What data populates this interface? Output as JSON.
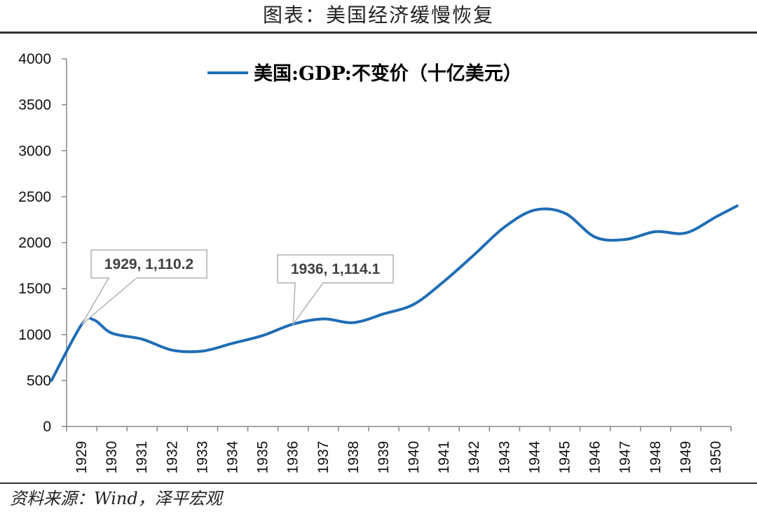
{
  "title": "图表：美国经济缓慢恢复",
  "source": "资料来源：Wind，泽平宏观",
  "chart_data": {
    "type": "line",
    "title": "",
    "xlabel": "",
    "ylabel": "",
    "ylim": [
      0,
      4000
    ],
    "yticks": [
      0,
      500,
      1000,
      1500,
      2000,
      2500,
      3000,
      3500,
      4000
    ],
    "categories": [
      "1929",
      "1930",
      "1931",
      "1932",
      "1933",
      "1934",
      "1935",
      "1936",
      "1937",
      "1938",
      "1939",
      "1940",
      "1941",
      "1942",
      "1943",
      "1944",
      "1945",
      "1946",
      "1947",
      "1948",
      "1949",
      "1950"
    ],
    "legend_position": "top",
    "grid": false,
    "series": [
      {
        "name": "美国:GDP:不变价（十亿美元）",
        "color": "#1f6db5",
        "points": [
          {
            "x": 1928,
            "y": 500
          },
          {
            "x": 1929,
            "y": 1110.2
          },
          {
            "x": 1929.4,
            "y": 1160
          },
          {
            "x": 1930,
            "y": 1015
          },
          {
            "x": 1931,
            "y": 950
          },
          {
            "x": 1932,
            "y": 830
          },
          {
            "x": 1933,
            "y": 820
          },
          {
            "x": 1934,
            "y": 905
          },
          {
            "x": 1935,
            "y": 990
          },
          {
            "x": 1936,
            "y": 1114.1
          },
          {
            "x": 1937,
            "y": 1170
          },
          {
            "x": 1938,
            "y": 1130
          },
          {
            "x": 1939,
            "y": 1225
          },
          {
            "x": 1940,
            "y": 1330
          },
          {
            "x": 1941,
            "y": 1580
          },
          {
            "x": 1942,
            "y": 1870
          },
          {
            "x": 1943,
            "y": 2170
          },
          {
            "x": 1944,
            "y": 2355
          },
          {
            "x": 1945,
            "y": 2320
          },
          {
            "x": 1946,
            "y": 2060
          },
          {
            "x": 1947,
            "y": 2035
          },
          {
            "x": 1948,
            "y": 2120
          },
          {
            "x": 1949,
            "y": 2105
          },
          {
            "x": 1950,
            "y": 2280
          },
          {
            "x": 1950.7,
            "y": 2400
          }
        ]
      }
    ],
    "annotations": [
      {
        "label": "1929, 1,110.2",
        "x": 1929,
        "y": 1110.2
      },
      {
        "label": "1936, 1,114.1",
        "x": 1936,
        "y": 1114.1
      }
    ]
  }
}
